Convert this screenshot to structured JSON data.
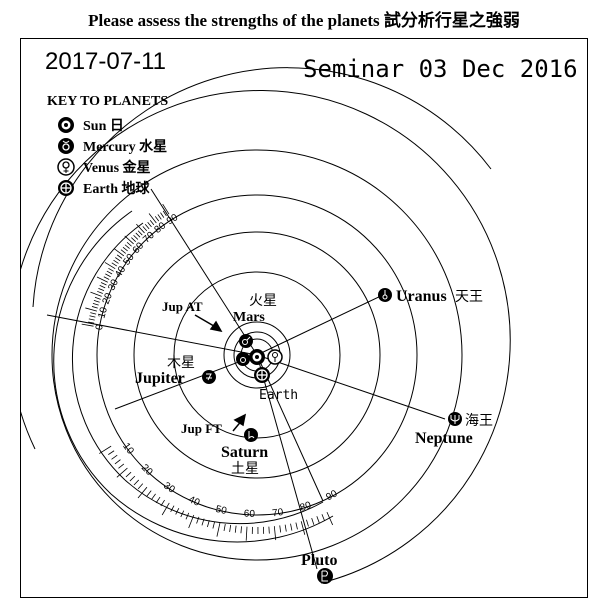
{
  "header": {
    "title": "Please assess the strengths of the planets 試分析行星之強弱"
  },
  "diagram": {
    "date": "2017-07-11",
    "seminar": "Seminar 03 Dec 2016",
    "key": {
      "heading": "KEY TO PLANETS",
      "items": [
        {
          "label": "Sun 日",
          "icon": "sun-symbol"
        },
        {
          "label": "Mercury 水星",
          "icon": "mercury-symbol"
        },
        {
          "label": "Venus 金星",
          "icon": "venus-symbol"
        },
        {
          "label": "Earth 地球",
          "icon": "earth-symbol"
        }
      ]
    },
    "planets": {
      "mars": {
        "cn": "火星",
        "en": "Mars"
      },
      "jupiter": {
        "cn": "木星",
        "en": "Jupiter"
      },
      "saturn": {
        "en": "Saturn",
        "cn": "土星"
      },
      "uranus": {
        "en": "Uranus",
        "cn": "天王"
      },
      "neptune": {
        "cn": "海王",
        "en": "Neptune"
      },
      "pluto": {
        "en": "Pluto"
      },
      "earth": {
        "en": "Earth"
      }
    },
    "annotations": {
      "jup_at": "Jup AT",
      "jup_ft": "Jup FT"
    },
    "upper_scale": [
      "0",
      "10",
      "20",
      "30",
      "40",
      "50",
      "60",
      "70",
      "80",
      "90"
    ],
    "lower_scale": [
      "10",
      "20",
      "30",
      "40",
      "50",
      "60",
      "70",
      "80",
      "90"
    ]
  }
}
